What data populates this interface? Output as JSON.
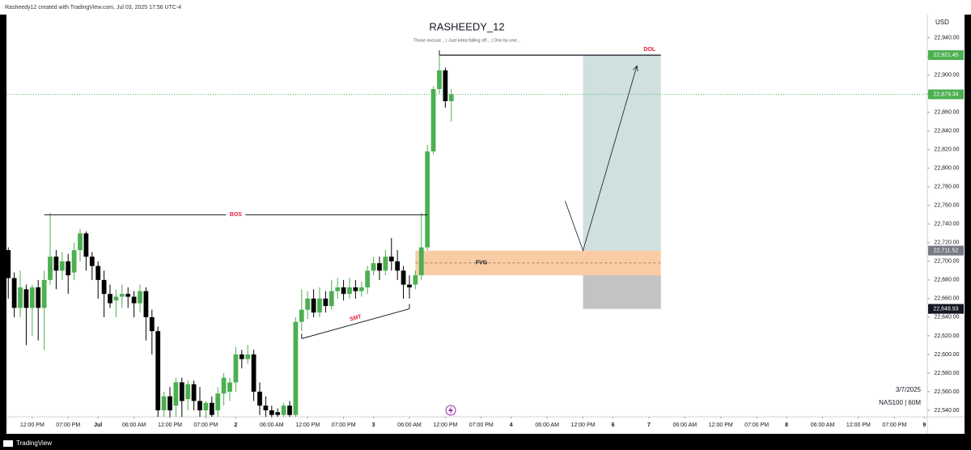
{
  "header": "Rasheedy12 created with TradingView.com, Jul 03, 2025 17:56 UTC-4",
  "footer": "TradingView",
  "chart_data": {
    "type": "candlestick",
    "title": "RASHEEDY_12",
    "subtitle": "Those excuse... | Just keep falling off... | One by one...",
    "y_axis_label": "USD",
    "date_label": "3/7/2025",
    "symbol_label": "NAS100 | 60M",
    "xlim": [
      -0.3,
      153.5
    ],
    "xticks": [
      {
        "value": 4,
        "label": "12:00 PM"
      },
      {
        "value": 10,
        "label": "07:00 PM"
      },
      {
        "value": 15,
        "label": "Jul"
      },
      {
        "value": 21,
        "label": "06:00 AM"
      },
      {
        "value": 27,
        "label": "12:00 PM"
      },
      {
        "value": 33,
        "label": "07:00 PM"
      },
      {
        "value": 38,
        "label": "2"
      },
      {
        "value": 44,
        "label": "06:00 AM"
      },
      {
        "value": 50,
        "label": "12:00 PM"
      },
      {
        "value": 56,
        "label": "07:00 PM"
      },
      {
        "value": 61,
        "label": "3"
      },
      {
        "value": 67,
        "label": "06:00 AM"
      },
      {
        "value": 73,
        "label": "12:00 PM"
      },
      {
        "value": 79,
        "label": "07:00 PM"
      },
      {
        "value": 84,
        "label": "4"
      },
      {
        "value": 90,
        "label": "06:00 AM"
      },
      {
        "value": 96,
        "label": "12:00 PM"
      },
      {
        "value": 101,
        "label": "6"
      },
      {
        "value": 107,
        "label": "7"
      },
      {
        "value": 113,
        "label": "06:00 AM"
      },
      {
        "value": 119,
        "label": "12:00 PM"
      },
      {
        "value": 125,
        "label": "07:00 PM"
      },
      {
        "value": 130,
        "label": "8"
      },
      {
        "value": 136,
        "label": "06:00 AM"
      },
      {
        "value": 142,
        "label": "12:00 PM"
      },
      {
        "value": 148,
        "label": "07:00 PM"
      },
      {
        "value": 153,
        "label": "9"
      }
    ],
    "ylim": [
      22533,
      22965
    ],
    "yticks": [
      {
        "value": 22540,
        "label": "22,540.00"
      },
      {
        "value": 22560,
        "label": "22,560.00"
      },
      {
        "value": 22580,
        "label": "22,580.00"
      },
      {
        "value": 22600,
        "label": "22,600.00"
      },
      {
        "value": 22620,
        "label": "22,620.00"
      },
      {
        "value": 22640,
        "label": "22,640.00"
      },
      {
        "value": 22660,
        "label": "22,660.00"
      },
      {
        "value": 22680,
        "label": "22,680.00"
      },
      {
        "value": 22700,
        "label": "22,700.00"
      },
      {
        "value": 22720,
        "label": "22,720.00"
      },
      {
        "value": 22740,
        "label": "22,740.00"
      },
      {
        "value": 22760,
        "label": "22,760.00"
      },
      {
        "value": 22780,
        "label": "22,780.00"
      },
      {
        "value": 22800,
        "label": "22,800.00"
      },
      {
        "value": 22820,
        "label": "22,820.00"
      },
      {
        "value": 22840,
        "label": "22,840.00"
      },
      {
        "value": 22860,
        "label": "22,860.00"
      },
      {
        "value": 22880,
        "label": "22,880.00"
      },
      {
        "value": 22900,
        "label": "22,900.00"
      },
      {
        "value": 22920,
        "label": "22,920.00"
      },
      {
        "value": 22940,
        "label": "22,940.00"
      }
    ],
    "grid": false,
    "up_color": "#4caf50",
    "down_color": "#000000",
    "open": [
      22712,
      22682,
      22650,
      22670,
      22650,
      22672,
      22650,
      22680,
      22705,
      22690,
      22700,
      22688,
      22712,
      22730,
      22705,
      22695,
      22680,
      22665,
      22658,
      22662,
      22665,
      22662,
      22655,
      22668,
      22640,
      22625,
      22540,
      22555,
      22545,
      22570,
      22552,
      22568,
      22550,
      22540,
      22548,
      22540,
      22558,
      22560,
      22570,
      22600,
      22595,
      22600,
      22560,
      22545,
      22540,
      22538,
      22535,
      22545,
      22535,
      22635,
      22648,
      22660,
      22645,
      22660,
      22652,
      22668,
      22672,
      22665,
      22672,
      22668,
      22672,
      22690,
      22698,
      22690,
      22705,
      22700,
      22690,
      22675,
      22675,
      22685,
      22715,
      22818,
      22885,
      22905,
      22872
    ],
    "high": [
      22715,
      22688,
      22690,
      22675,
      22675,
      22680,
      22690,
      22752,
      22712,
      22710,
      22708,
      22720,
      22735,
      22732,
      22710,
      22700,
      22690,
      22675,
      22670,
      22675,
      22672,
      22668,
      22675,
      22672,
      22648,
      22630,
      22560,
      22565,
      22575,
      22575,
      22572,
      22572,
      22565,
      22550,
      22555,
      22565,
      22580,
      22575,
      22608,
      22605,
      22610,
      22605,
      22570,
      22555,
      22545,
      22542,
      22548,
      22550,
      22640,
      22670,
      22668,
      22670,
      22672,
      22668,
      22680,
      22682,
      22680,
      22682,
      22680,
      22678,
      22695,
      22705,
      22705,
      22712,
      22725,
      22712,
      22695,
      22685,
      22690,
      22752,
      22825,
      22888,
      22921,
      22908,
      22885
    ],
    "low": [
      22660,
      22640,
      22640,
      22610,
      22620,
      22615,
      22605,
      22675,
      22670,
      22680,
      22665,
      22680,
      22700,
      22690,
      22680,
      22660,
      22640,
      22650,
      22640,
      22650,
      22650,
      22640,
      22645,
      22615,
      22600,
      22533,
      22533,
      22533,
      22533,
      22533,
      22540,
      22540,
      22533,
      22533,
      22533,
      22533,
      22545,
      22550,
      22560,
      22585,
      22590,
      22550,
      22535,
      22533,
      22533,
      22533,
      22533,
      22533,
      22533,
      22625,
      22638,
      22640,
      22640,
      22645,
      22648,
      22660,
      22658,
      22660,
      22660,
      22662,
      22665,
      22685,
      22680,
      22685,
      22690,
      22680,
      22660,
      22660,
      22670,
      22680,
      22712,
      22815,
      22880,
      22865,
      22850
    ],
    "close": [
      22682,
      22650,
      22672,
      22650,
      22672,
      22650,
      22680,
      22705,
      22690,
      22700,
      22685,
      22712,
      22730,
      22705,
      22695,
      22680,
      22665,
      22655,
      22662,
      22665,
      22662,
      22655,
      22668,
      22640,
      22625,
      22540,
      22555,
      22540,
      22570,
      22550,
      22568,
      22550,
      22540,
      22548,
      22535,
      22558,
      22575,
      22570,
      22600,
      22595,
      22600,
      22560,
      22545,
      22540,
      22535,
      22535,
      22545,
      22535,
      22635,
      22648,
      22660,
      22645,
      22660,
      22652,
      22668,
      22672,
      22665,
      22672,
      22668,
      22672,
      22690,
      22698,
      22690,
      22705,
      22700,
      22690,
      22675,
      22672,
      22685,
      22715,
      22818,
      22885,
      22905,
      22872,
      22879.34
    ],
    "last_price": {
      "value": 22879.34,
      "label": "22,879.34",
      "color": "#4caf50"
    },
    "price_tags": [
      {
        "value": 22921.45,
        "label": "22,921.45",
        "color": "#4caf50"
      },
      {
        "value": 22711.52,
        "label": "22,711.52",
        "color": "#787b86"
      },
      {
        "value": 22648.93,
        "label": "22,648.93",
        "color": "#131722"
      }
    ],
    "annotations": {
      "target": {
        "x": [
          96,
          109
        ],
        "y": [
          22711.52,
          22921.45
        ],
        "color": "#cfe0df"
      },
      "stop": {
        "x": [
          96,
          109
        ],
        "y": [
          22648.93,
          22685
        ],
        "color": "#bdbdbd"
      },
      "fvg": {
        "label": "FVG",
        "x": [
          68,
          109
        ],
        "y": [
          22685,
          22711.52
        ],
        "color": "#f5a35c"
      },
      "bos": {
        "label": "BOS",
        "x": [
          6,
          70
        ],
        "y": 22750,
        "color": "#e91e3f"
      },
      "dol": {
        "label": "DOL",
        "x": [
          72,
          109
        ],
        "y": 22921.45,
        "color": "#e91e3f"
      },
      "smt": {
        "label": "SMT",
        "x": [
          49,
          67
        ],
        "y": [
          22617,
          22649
        ],
        "color": "#e91e3f"
      },
      "path": {
        "x": [
          93,
          96,
          105
        ],
        "y": [
          22765,
          22711.52,
          22910
        ]
      }
    }
  }
}
